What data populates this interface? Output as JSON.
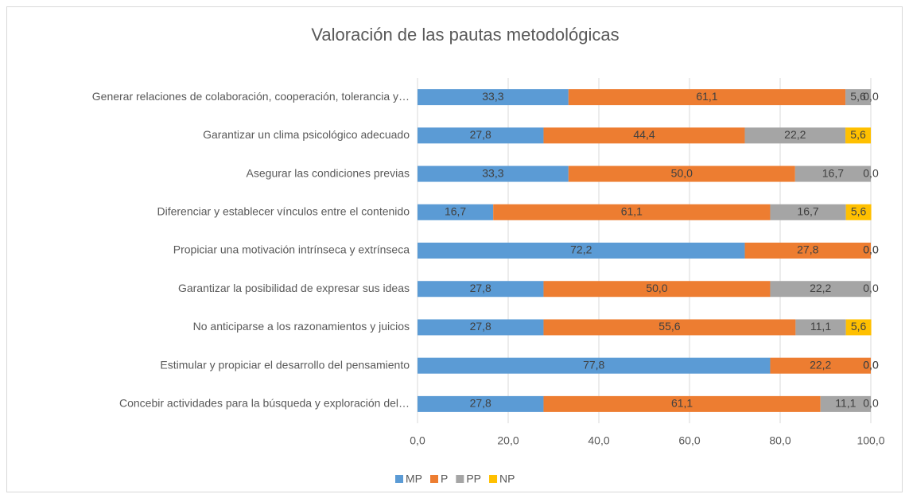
{
  "chart_data": {
    "type": "stacked_bar_horizontal",
    "title": "Valoración de las pautas metodológicas",
    "categories": [
      "Generar relaciones de colaboración, cooperación, tolerancia y…",
      "Garantizar un clima psicológico adecuado",
      "Asegurar las condiciones previas",
      "Diferenciar y establecer vínculos entre el contenido",
      "Propiciar una motivación intrínseca y extrínseca",
      "Garantizar la posibilidad de expresar sus ideas",
      "No anticiparse a los razonamientos y juicios",
      "Estimular y propiciar el desarrollo del pensamiento",
      "Concebir actividades para la búsqueda y exploración del…"
    ],
    "series": [
      {
        "name": "MP",
        "color": "#5b9bd5",
        "values": [
          33.3,
          27.8,
          33.3,
          16.7,
          72.2,
          27.8,
          27.8,
          77.8,
          27.8
        ],
        "value_labels": [
          "33,3",
          "27,8",
          "33,3",
          "16,7",
          "72,2",
          "27,8",
          "27,8",
          "77,8",
          "27,8"
        ]
      },
      {
        "name": "P",
        "color": "#ed7d31",
        "values": [
          61.1,
          44.4,
          50.0,
          61.1,
          27.8,
          50.0,
          55.6,
          22.2,
          61.1
        ],
        "value_labels": [
          "61,1",
          "44,4",
          "50,0",
          "61,1",
          "27,8",
          "50,0",
          "55,6",
          "22,2",
          "61,1"
        ]
      },
      {
        "name": "PP",
        "color": "#a5a5a5",
        "values": [
          5.6,
          22.2,
          16.7,
          16.7,
          0.0,
          22.2,
          11.1,
          0.0,
          11.1
        ],
        "value_labels": [
          "5,6",
          "22,2",
          "16,7",
          "16,7",
          "0,0",
          "22,2",
          "11,1",
          "0,0",
          "11,1"
        ]
      },
      {
        "name": "NP",
        "color": "#ffc000",
        "values": [
          0.0,
          5.6,
          0.0,
          5.6,
          0.0,
          0.0,
          5.6,
          0.0,
          0.0
        ],
        "value_labels": [
          "0,0",
          "5,6",
          "0,0",
          "5,6",
          "0,0",
          "0,0",
          "5,6",
          "0,0",
          "0,0"
        ]
      }
    ],
    "xlim": [
      0,
      100
    ],
    "xticks": [
      {
        "value": 0,
        "label": "0,0"
      },
      {
        "value": 20,
        "label": "20,0"
      },
      {
        "value": 40,
        "label": "40,0"
      },
      {
        "value": 60,
        "label": "60,0"
      },
      {
        "value": 80,
        "label": "80,0"
      },
      {
        "value": 100,
        "label": "100,0"
      }
    ],
    "grid": true,
    "legend": "bottom"
  }
}
